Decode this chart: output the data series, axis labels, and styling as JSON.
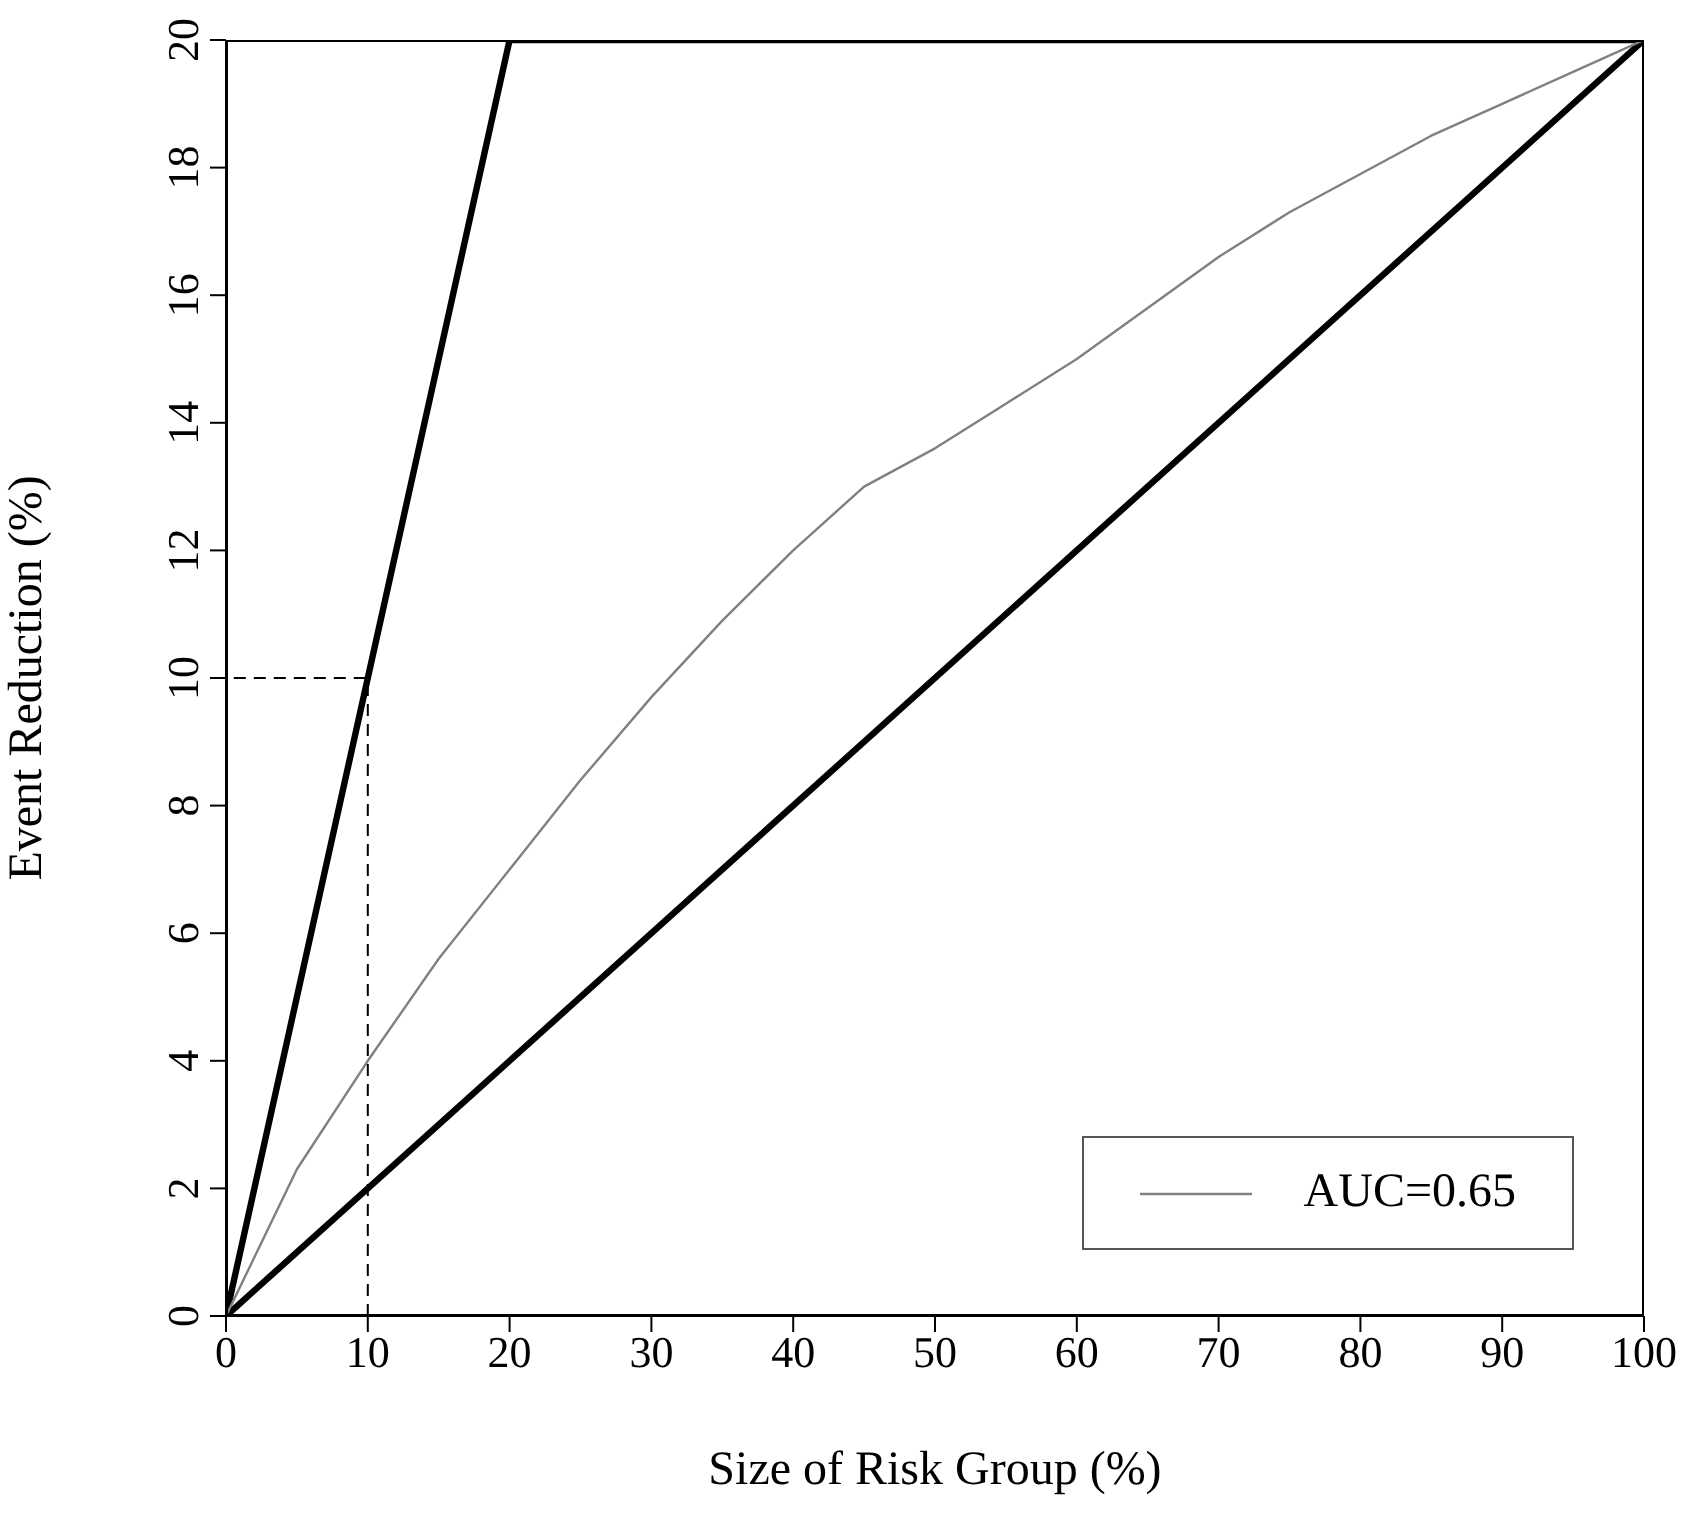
{
  "chart_data": {
    "type": "line",
    "xlabel": "Size of Risk Group (%)",
    "ylabel": "Event Reduction (%)",
    "xlim": [
      0,
      100
    ],
    "ylim": [
      0,
      20
    ],
    "xticks": [
      0,
      10,
      20,
      30,
      40,
      50,
      60,
      70,
      80,
      90,
      100
    ],
    "yticks": [
      0,
      2,
      4,
      6,
      8,
      10,
      12,
      14,
      16,
      18,
      20
    ],
    "grid": false,
    "legend": "bottom right",
    "series": [
      {
        "color": "#000000",
        "x": [
          0,
          20,
          100
        ],
        "values": [
          0,
          20,
          20
        ]
      },
      {
        "color": "#000000",
        "x": [
          0,
          100
        ],
        "values": [
          0,
          20
        ]
      },
      {
        "name": "AUC=0.65",
        "color": "#808080",
        "x": [
          0,
          5,
          10,
          15,
          20,
          25,
          30,
          35,
          40,
          45,
          50,
          55,
          60,
          65,
          70,
          75,
          80,
          85,
          90,
          95,
          100
        ],
        "values": [
          0,
          2.3,
          4.0,
          5.6,
          7.0,
          8.4,
          9.7,
          10.9,
          12.0,
          13.0,
          13.6,
          14.3,
          15.0,
          15.8,
          16.6,
          17.3,
          17.9,
          18.5,
          19.0,
          19.5,
          20
        ]
      },
      {
        "color": "#000000",
        "line_style": "dashed",
        "x": [
          10,
          10,
          0
        ],
        "values": [
          0,
          10,
          10
        ]
      }
    ]
  }
}
